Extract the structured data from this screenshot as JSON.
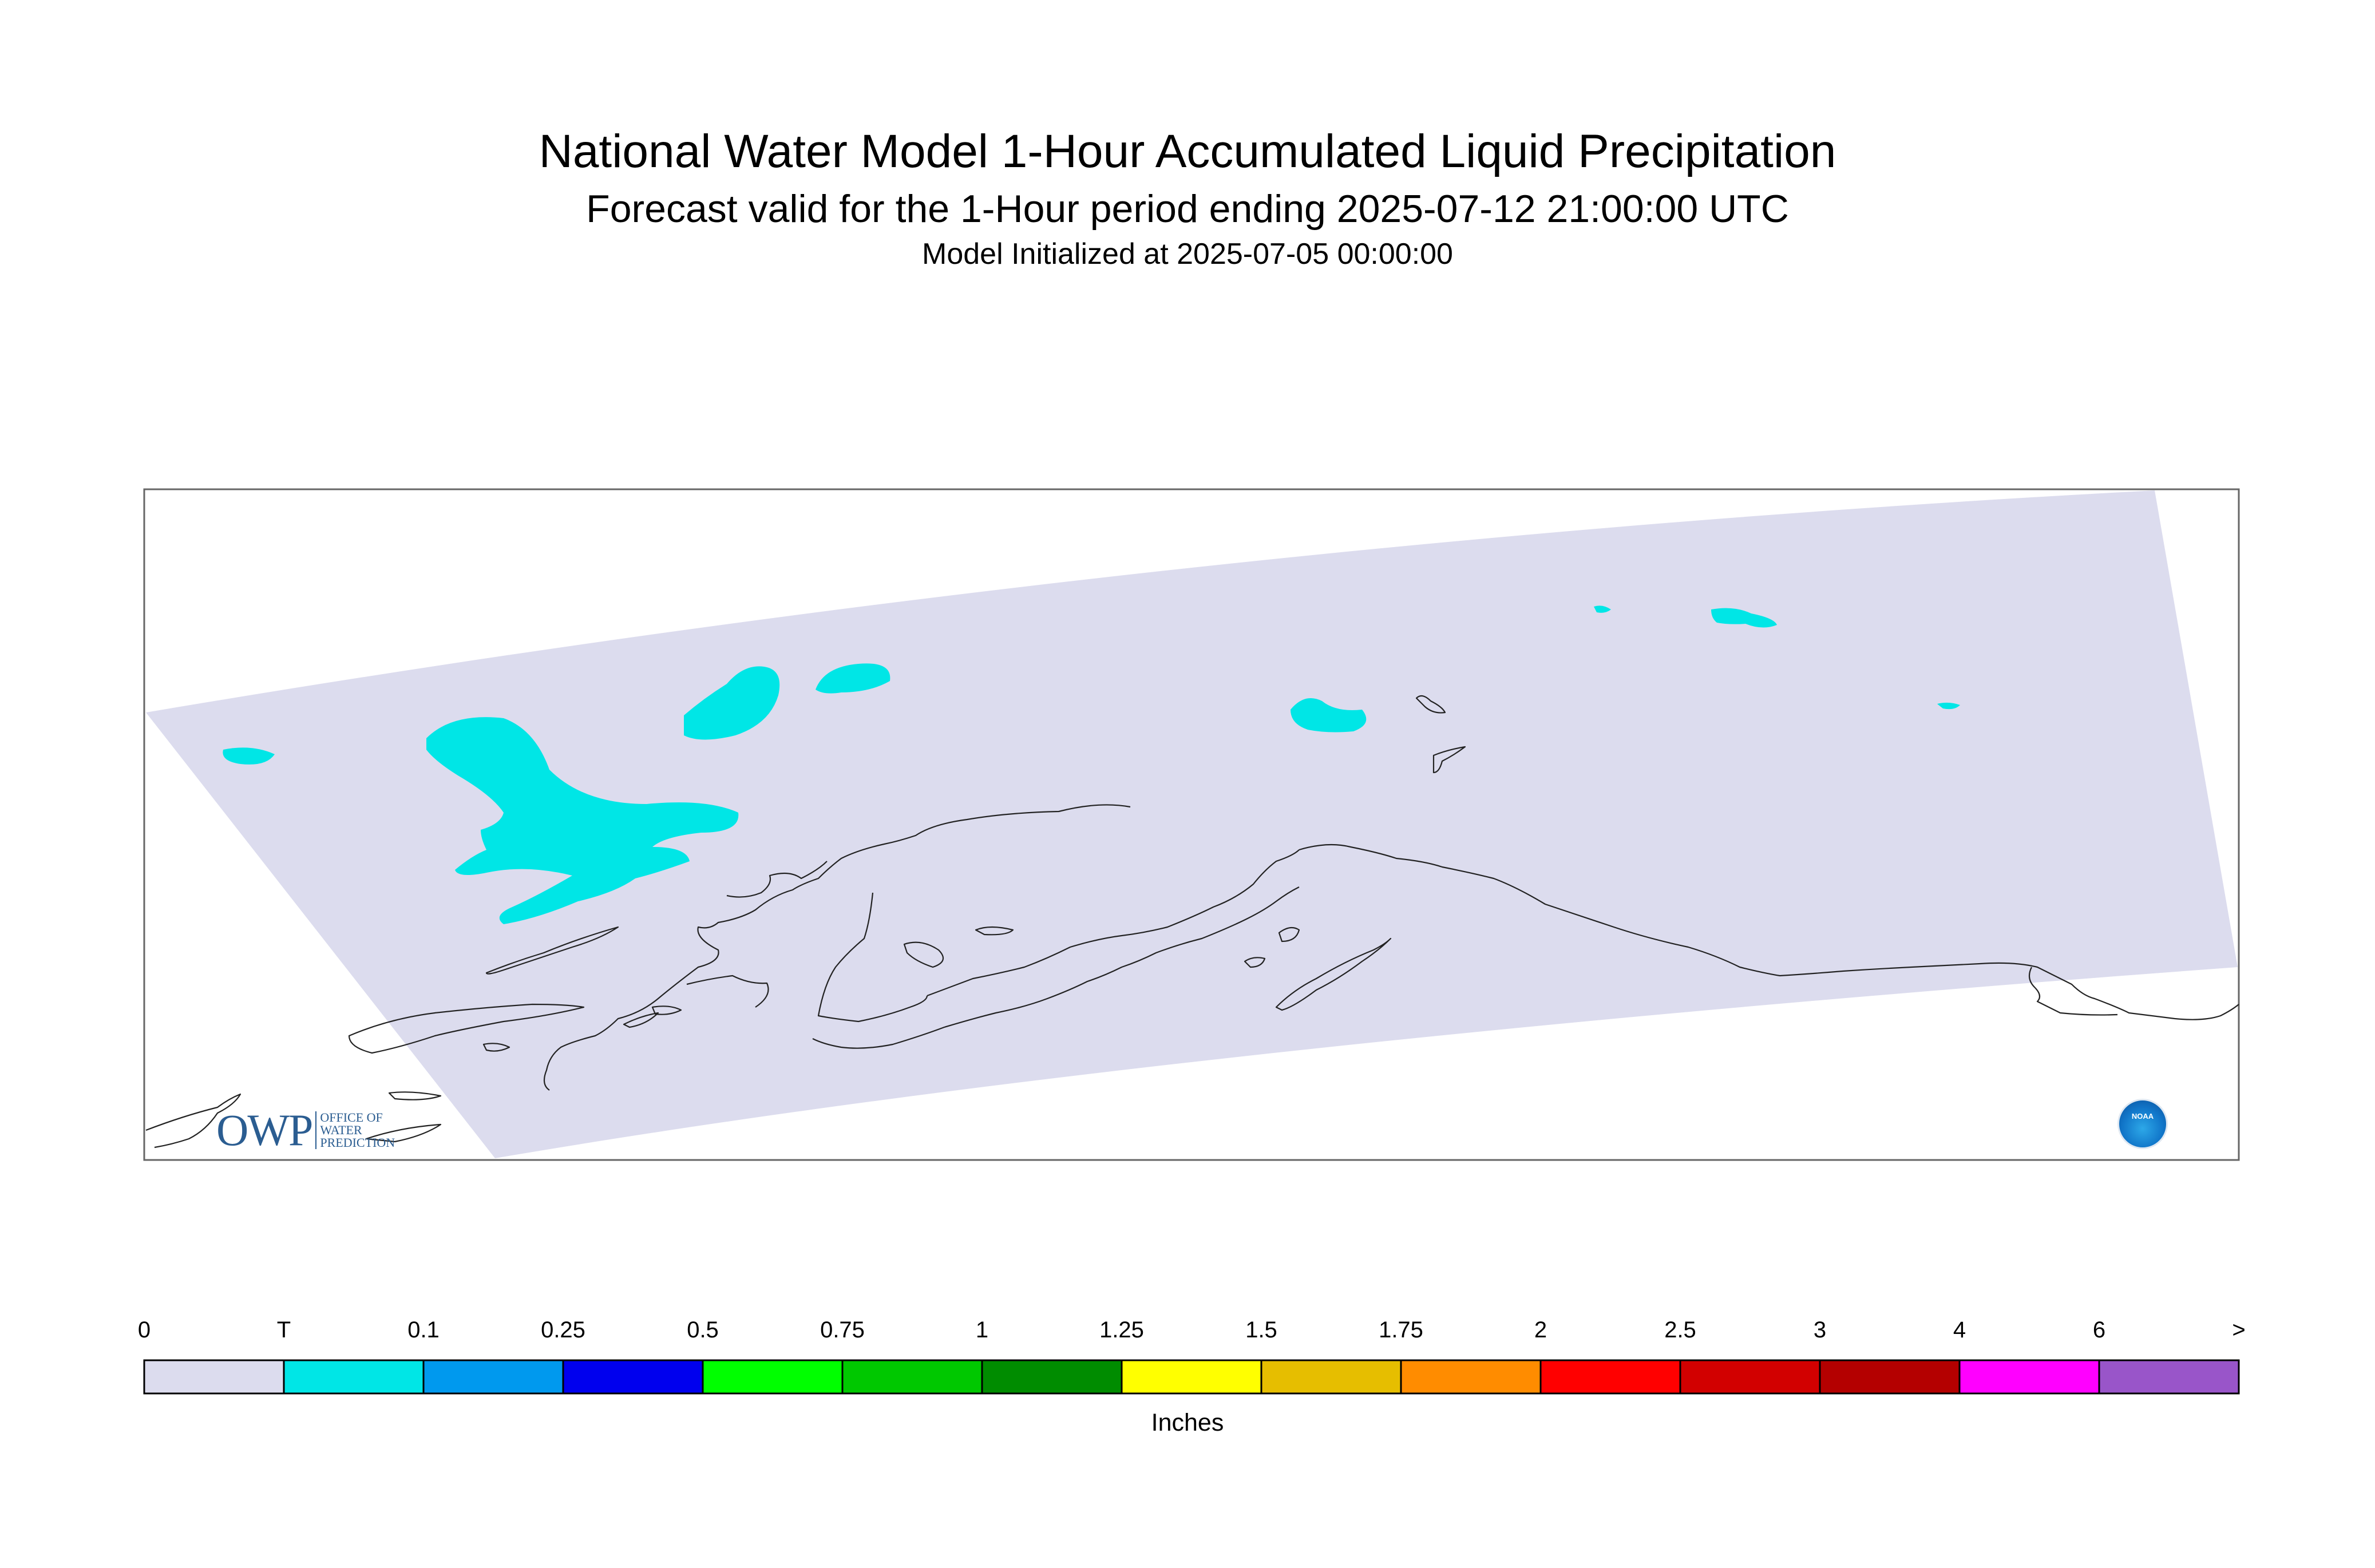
{
  "header": {
    "title": "National Water Model 1-Hour Accumulated Liquid Precipitation",
    "subtitle": "Forecast valid for the 1-Hour period ending 2025-07-12 21:00:00 UTC",
    "init": "Model Initialized at 2025-07-05 00:00:00"
  },
  "map": {
    "region": "Alaska",
    "domain_color": "#dcdcee",
    "precip_color": "#00e6e6",
    "coastline_color": "#222222"
  },
  "logos": {
    "owp_mark": "OWP",
    "owp_text": [
      "OFFICE OF",
      "WATER",
      "PREDICTION"
    ],
    "noaa_text": "NOAA"
  },
  "legend": {
    "units": "Inches",
    "ticks": [
      "0",
      "T",
      "0.1",
      "0.25",
      "0.5",
      "0.75",
      "1",
      "1.25",
      "1.5",
      "1.75",
      "2",
      "2.5",
      "3",
      "4",
      "6",
      ">"
    ],
    "colors": [
      "#dcdcee",
      "#00e6e6",
      "#0099ee",
      "#0000ee",
      "#00ff00",
      "#00c800",
      "#008c00",
      "#ffff00",
      "#e6be00",
      "#ff8c00",
      "#ff0000",
      "#d20000",
      "#b40000",
      "#ff00ff",
      "#9955c9"
    ]
  }
}
